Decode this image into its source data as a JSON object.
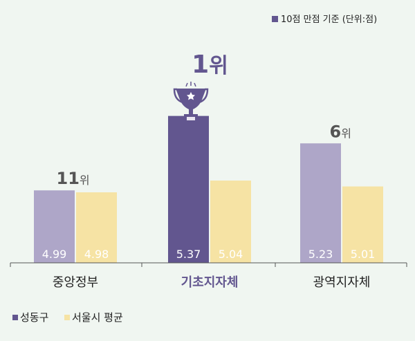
{
  "chart_data": {
    "type": "bar",
    "note": "10점 만점 기준 (단위:점)",
    "categories": [
      "중앙정부",
      "기초지자체",
      "광역지자체"
    ],
    "highlight_category": "기초지자체",
    "ranks": [
      {
        "num": "11",
        "unit": "위"
      },
      {
        "num": "1",
        "unit": "위"
      },
      {
        "num": "6",
        "unit": "위"
      }
    ],
    "series": [
      {
        "name": "성동구",
        "values": [
          4.99,
          5.37,
          5.23
        ],
        "color": "#62568f",
        "light_color": "#aea6c8"
      },
      {
        "name": "서울시 평균",
        "values": [
          4.98,
          5.04,
          5.01
        ],
        "color": "#f6e3a4"
      }
    ],
    "data_labels": [
      [
        "4.99",
        "5.37",
        "5.23"
      ],
      [
        "4.98",
        "5.04",
        "5.01"
      ]
    ],
    "ylim": [
      4.62,
      5.75
    ],
    "grid": false,
    "legend_placement": "bottom-left",
    "colors": {
      "accent": "#62568f",
      "axis": "#555555",
      "label": "#ffffff"
    }
  }
}
